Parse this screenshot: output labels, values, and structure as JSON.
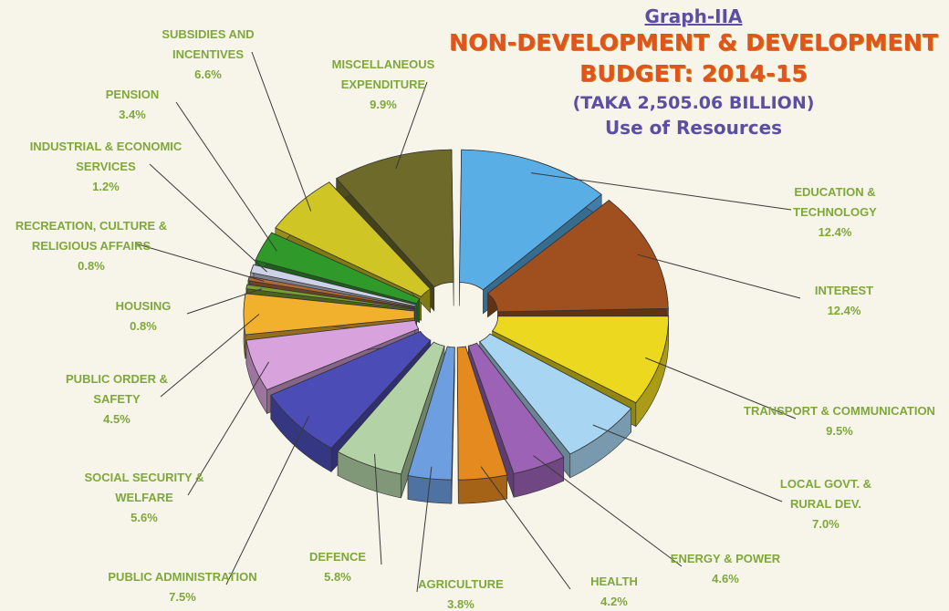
{
  "header": {
    "graph_id": "Graph-IIA",
    "title_line1": "NON-DEVELOPMENT & DEVELOPMENT",
    "title_line2": "BUDGET: 2014-15",
    "total": "(TAKA 2,505.06 BILLION)",
    "subtitle": "Use of Resources"
  },
  "chart_data": {
    "type": "pie",
    "title": "NON-DEVELOPMENT & DEVELOPMENT BUDGET: 2014-15",
    "subtitle": "Use of Resources",
    "total": "(TAKA 2,505.06 BILLION)",
    "unit": "%",
    "slices": [
      {
        "lines": [
          "EDUCATION &",
          "TECHNOLOGY"
        ],
        "value": 12.4,
        "pct": "12.4%",
        "color": "#5aaee6"
      },
      {
        "lines": [
          "INTEREST"
        ],
        "value": 12.4,
        "pct": "12.4%",
        "color": "#a04f1f"
      },
      {
        "lines": [
          "TRANSPORT & COMMUNICATION"
        ],
        "value": 9.5,
        "pct": "9.5%",
        "color": "#ecd81e"
      },
      {
        "lines": [
          "LOCAL GOVT. &",
          "RURAL DEV."
        ],
        "value": 7.0,
        "pct": "7.0%",
        "color": "#a8d6f2"
      },
      {
        "lines": [
          "ENERGY & POWER"
        ],
        "value": 4.6,
        "pct": "4.6%",
        "color": "#9b62b6"
      },
      {
        "lines": [
          "HEALTH"
        ],
        "value": 4.2,
        "pct": "4.2%",
        "color": "#e48a1f"
      },
      {
        "lines": [
          "AGRICULTURE"
        ],
        "value": 3.8,
        "pct": "3.8%",
        "color": "#6c9ee0"
      },
      {
        "lines": [
          "DEFENCE"
        ],
        "value": 5.8,
        "pct": "5.8%",
        "color": "#b3d3a6"
      },
      {
        "lines": [
          "PUBLIC ADMINISTRATION"
        ],
        "value": 7.5,
        "pct": "7.5%",
        "color": "#4b4cb6"
      },
      {
        "lines": [
          "SOCIAL SECURITY &",
          "WELFARE"
        ],
        "value": 5.6,
        "pct": "5.6%",
        "color": "#d8a3dc"
      },
      {
        "lines": [
          "PUBLIC ORDER &",
          "SAFETY"
        ],
        "value": 4.5,
        "pct": "4.5%",
        "color": "#f2b12c"
      },
      {
        "lines": [
          "HOUSING"
        ],
        "value": 0.8,
        "pct": "0.8%",
        "color": "#7a9e2f"
      },
      {
        "lines": [
          "RECREATION, CULTURE &",
          "RELIGIOUS AFFAIRS"
        ],
        "value": 0.8,
        "pct": "0.8%",
        "color": "#b06a3a"
      },
      {
        "lines": [
          "INDUSTRIAL & ECONOMIC",
          "SERVICES"
        ],
        "value": 1.2,
        "pct": "1.2%",
        "color": "#cdd3e6"
      },
      {
        "lines": [
          "PENSION"
        ],
        "value": 3.4,
        "pct": "3.4%",
        "color": "#2f9a2a"
      },
      {
        "lines": [
          "SUBSIDIES AND",
          "INCENTIVES"
        ],
        "value": 6.6,
        "pct": "6.6%",
        "color": "#cfc524"
      },
      {
        "lines": [
          "MISCELLANEOUS",
          "EXPENDITURE"
        ],
        "value": 9.9,
        "pct": "9.9%",
        "color": "#6d6a2a"
      }
    ]
  }
}
